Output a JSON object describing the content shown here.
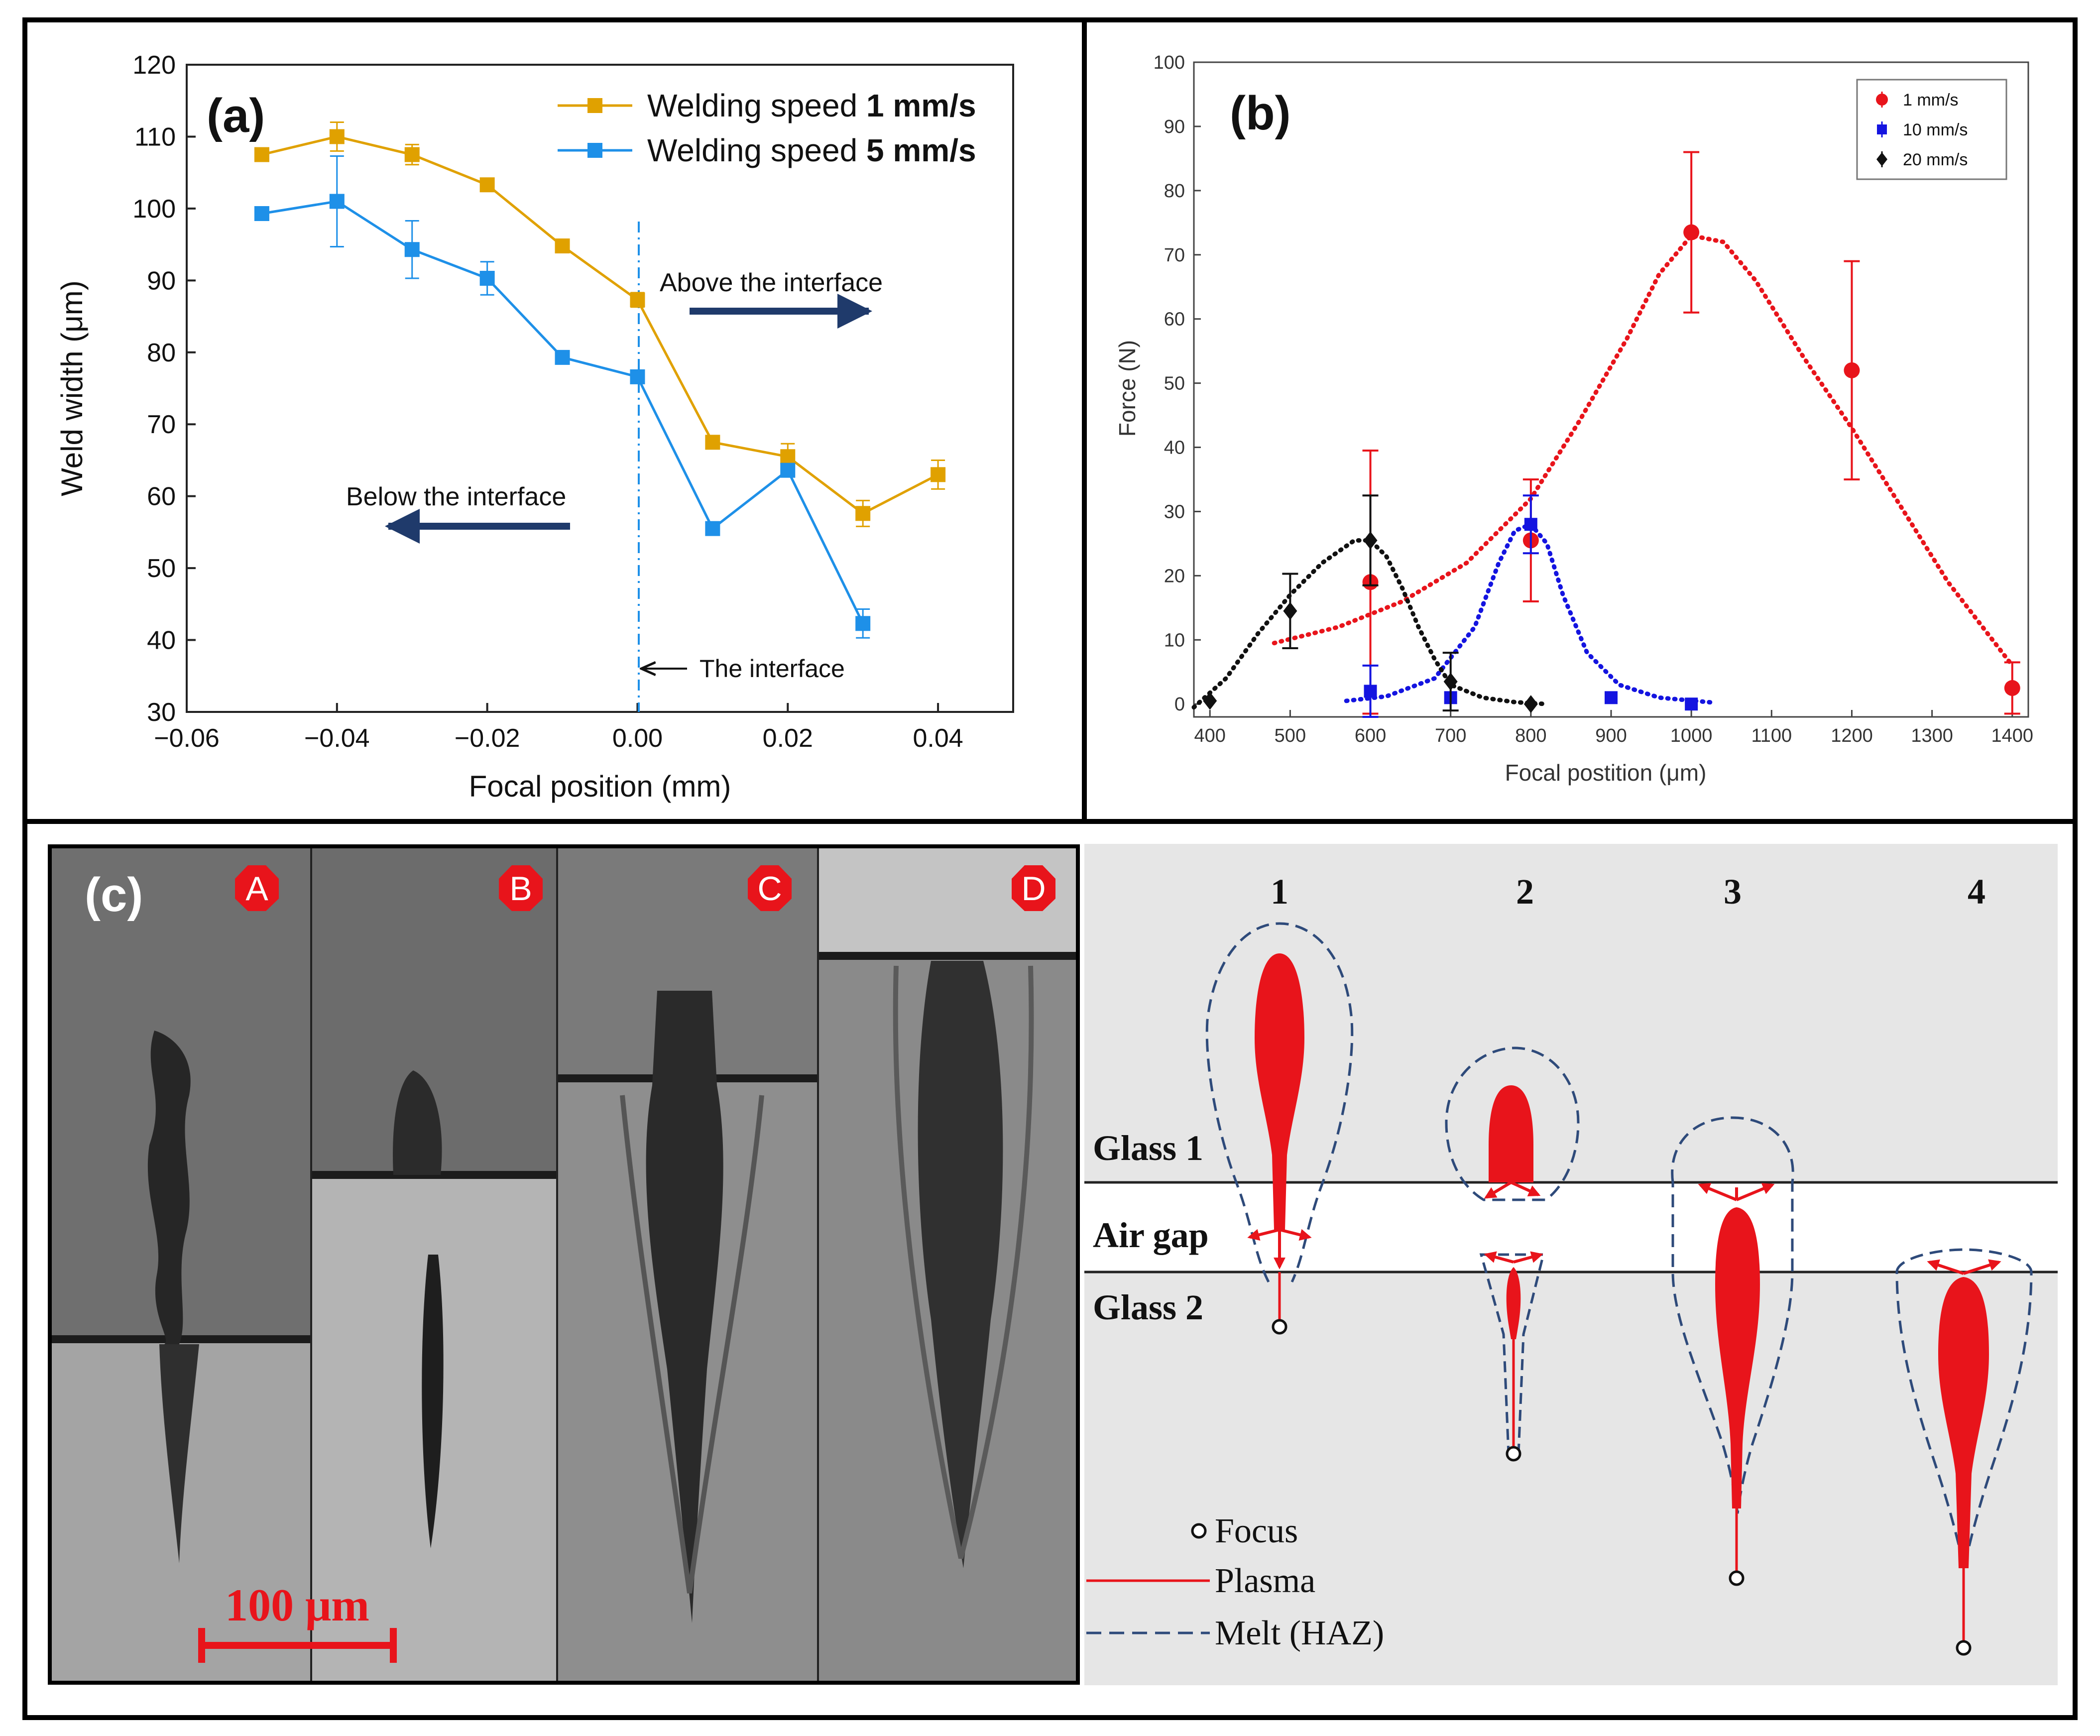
{
  "colors": {
    "orange": "#E0A100",
    "blue_a": "#1E90E8",
    "dark_arrow": "#1F3A6B",
    "red": "#E8141B",
    "blue_b": "#1414E0",
    "black": "#111111",
    "haz": "#2E4A7A"
  },
  "panel_a": {
    "label": "(a)",
    "above": "Above the interface",
    "below": "Below the interface",
    "interface": "The interface"
  },
  "panel_b": {
    "label": "(b)"
  },
  "panel_c": {
    "label": "(c)",
    "letters": [
      "A",
      "B",
      "C",
      "D"
    ],
    "scale_bar": "100 μm",
    "columns": [
      "1",
      "2",
      "3",
      "4"
    ],
    "glass1": "Glass 1",
    "air_gap": "Air gap",
    "glass2": "Glass 2",
    "legend_focus": "Focus",
    "legend_plasma": "Plasma",
    "legend_melt": "Melt (HAZ)"
  },
  "chart_data": [
    {
      "id": "a",
      "type": "line",
      "xlabel": "Focal position (mm)",
      "ylabel": "Weld width (μm)",
      "xlim": [
        -0.06,
        0.05
      ],
      "ylim": [
        30,
        120
      ],
      "xticks": [
        -0.06,
        -0.04,
        -0.02,
        0.0,
        0.02,
        0.04
      ],
      "xtick_labels": [
        "−0.06",
        "−0.04",
        "−0.02",
        "0.00",
        "0.02",
        "0.04"
      ],
      "yticks": [
        30,
        40,
        50,
        60,
        70,
        80,
        90,
        100,
        110,
        120
      ],
      "legend_location": "top-right",
      "series": [
        {
          "name_prefix": "Welding speed ",
          "name_bold": "1 mm/s",
          "color": "#E0A100",
          "x": [
            -0.05,
            -0.04,
            -0.03,
            -0.02,
            -0.01,
            0.0,
            0.01,
            0.02,
            0.03,
            0.04
          ],
          "y": [
            107.5,
            110,
            107.5,
            103.3,
            94.8,
            87.3,
            67.5,
            65.5,
            57.6,
            63
          ],
          "err": [
            0.8,
            2.0,
            1.4,
            0.5,
            0.5,
            1.0,
            0.6,
            1.8,
            1.8,
            2.0
          ]
        },
        {
          "name_prefix": "Welding speed ",
          "name_bold": "5 mm/s",
          "color": "#1E90E8",
          "x": [
            -0.05,
            -0.04,
            -0.03,
            -0.02,
            -0.01,
            0.0,
            0.01,
            0.02,
            0.03
          ],
          "y": [
            99.3,
            101,
            94.3,
            90.3,
            79.3,
            76.6,
            55.5,
            63.6,
            42.3
          ],
          "err": [
            0.4,
            6.3,
            4.0,
            2.3,
            0.5,
            0.6,
            0.5,
            0.8,
            2.0
          ]
        }
      ]
    },
    {
      "id": "b",
      "type": "scatter",
      "xlabel": "Focal postition (μm)",
      "ylabel": "Force (N)",
      "xlim": [
        380,
        1420
      ],
      "ylim": [
        -2,
        100
      ],
      "xticks": [
        400,
        500,
        600,
        700,
        800,
        900,
        1000,
        1100,
        1200,
        1300,
        1400
      ],
      "yticks": [
        0,
        10,
        20,
        30,
        40,
        50,
        60,
        70,
        80,
        90,
        100
      ],
      "legend_location": "top-right",
      "series": [
        {
          "name": "1 mm/s",
          "color": "#E8141B",
          "marker": "circle",
          "x": [
            600,
            800,
            1000,
            1200,
            1400
          ],
          "y": [
            19,
            25.5,
            73.5,
            52,
            2.5
          ],
          "err": [
            20.5,
            9.5,
            12.5,
            17,
            4
          ],
          "trend_x": [
            480,
            560,
            640,
            720,
            800,
            860,
            920,
            960,
            1000,
            1040,
            1080,
            1140,
            1200,
            1260,
            1320,
            1400
          ],
          "trend_y": [
            9.5,
            12,
            16,
            22,
            32,
            44,
            57,
            67,
            73,
            72,
            66,
            54,
            43,
            31,
            19,
            6
          ]
        },
        {
          "name": "10 mm/s",
          "color": "#1414E0",
          "marker": "square",
          "x": [
            600,
            700,
            800,
            900,
            1000
          ],
          "y": [
            2,
            1,
            28,
            1,
            0
          ],
          "err": [
            4,
            0,
            4.5,
            0,
            0
          ],
          "trend_x": [
            570,
            620,
            680,
            730,
            760,
            780,
            800,
            820,
            840,
            870,
            910,
            960,
            1030
          ],
          "trend_y": [
            0.5,
            1.2,
            4,
            12,
            22,
            27,
            28,
            25,
            17,
            8,
            3,
            1,
            0.2
          ]
        },
        {
          "name": "20 mm/s",
          "color": "#111111",
          "marker": "diamond",
          "x": [
            400,
            500,
            600,
            700,
            800
          ],
          "y": [
            0.5,
            14.5,
            25.5,
            3.5,
            0
          ],
          "err": [
            0,
            5.8,
            7,
            4.5,
            0
          ],
          "trend_x": [
            380,
            420,
            460,
            500,
            540,
            580,
            600,
            620,
            640,
            660,
            680,
            700,
            740,
            780,
            820
          ],
          "trend_y": [
            -0.5,
            4,
            11,
            17,
            22,
            25.5,
            25.5,
            23,
            18,
            12,
            7,
            3,
            1,
            0.3,
            0
          ]
        }
      ]
    }
  ]
}
